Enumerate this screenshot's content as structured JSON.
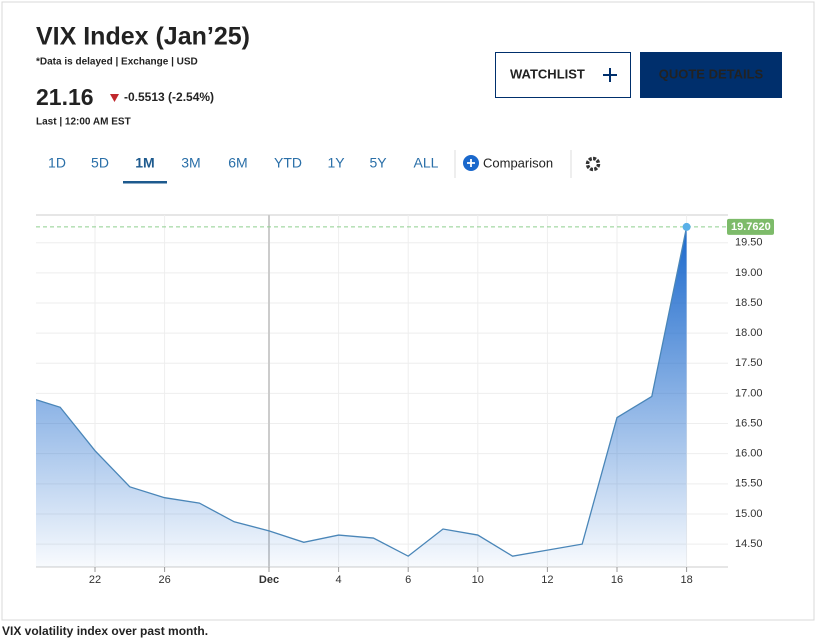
{
  "header": {
    "title": "VIX Index (Jan’25)",
    "subtitle": "*Data is delayed | Exchange | USD",
    "price": "21.16",
    "change": "-0.5513 (-2.54%)",
    "last": "Last | 12:00 AM EST"
  },
  "buttons": {
    "watchlist": "WATCHLIST",
    "quote": "QUOTE DETAILS"
  },
  "ranges": [
    "1D",
    "5D",
    "1M",
    "3M",
    "6M",
    "YTD",
    "1Y",
    "5Y",
    "ALL"
  ],
  "active_range": 2,
  "comparison": "Comparison",
  "caption": "VIX volatility index over past month.",
  "chart_data": {
    "type": "area",
    "color": "#4a86b8",
    "categories": [
      null,
      null,
      "22",
      null,
      "26",
      null,
      null,
      "Dec",
      null,
      "4",
      null,
      "6",
      null,
      "10",
      null,
      "12",
      null,
      "16",
      null,
      "18"
    ],
    "values": [
      16.95,
      16.77,
      16.05,
      15.45,
      15.27,
      15.18,
      14.87,
      14.72,
      14.53,
      14.65,
      14.6,
      14.3,
      14.75,
      14.65,
      14.3,
      14.4,
      14.5,
      16.6,
      16.95,
      19.762
    ],
    "last_value_label": "19.7620",
    "ylim": [
      14.12,
      19.96
    ],
    "yticks": [
      {
        "value": 14.5,
        "label": "14.50"
      },
      {
        "value": 15,
        "label": "15.00"
      },
      {
        "value": 15.5,
        "label": "15.50"
      },
      {
        "value": 16,
        "label": "16.00"
      },
      {
        "value": 16.5,
        "label": "16.50"
      },
      {
        "value": 17,
        "label": "17.00"
      },
      {
        "value": 17.5,
        "label": "17.50"
      },
      {
        "value": 18,
        "label": "18.00"
      },
      {
        "value": 18.5,
        "label": "18.50"
      },
      {
        "value": 19,
        "label": "19.00"
      },
      {
        "value": 19.5,
        "label": "19.50"
      }
    ],
    "grid": true
  }
}
